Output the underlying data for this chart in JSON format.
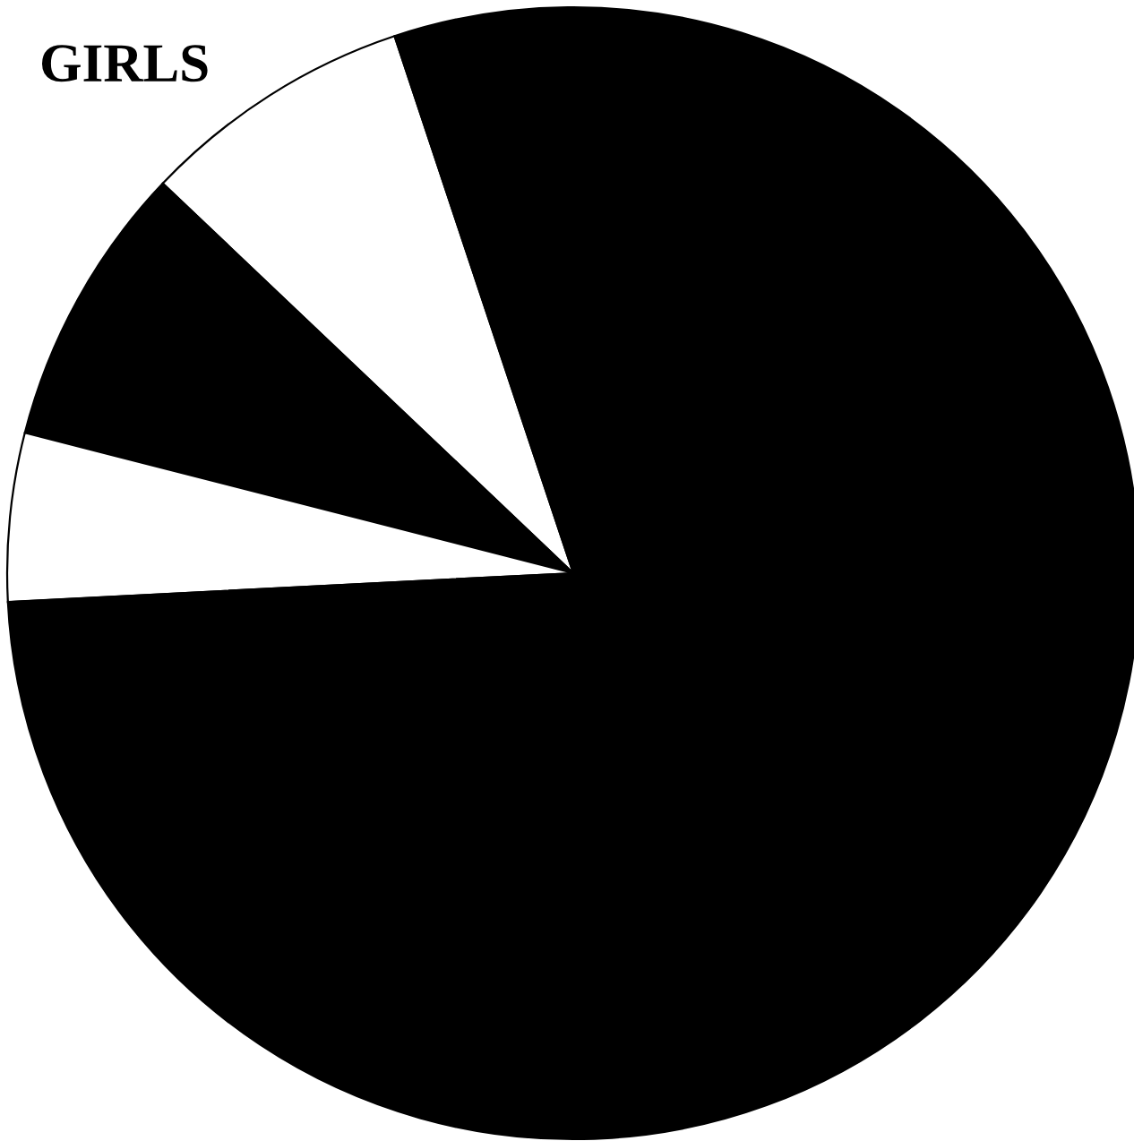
{
  "chart_data": {
    "type": "pie",
    "title": "GIRLS",
    "categories": [
      null,
      null,
      null,
      null
    ],
    "values": [
      7.8,
      8.1,
      4.8,
      79.3
    ],
    "colors": [
      "#ffffff",
      "#000000",
      "#ffffff",
      "#000000"
    ]
  }
}
